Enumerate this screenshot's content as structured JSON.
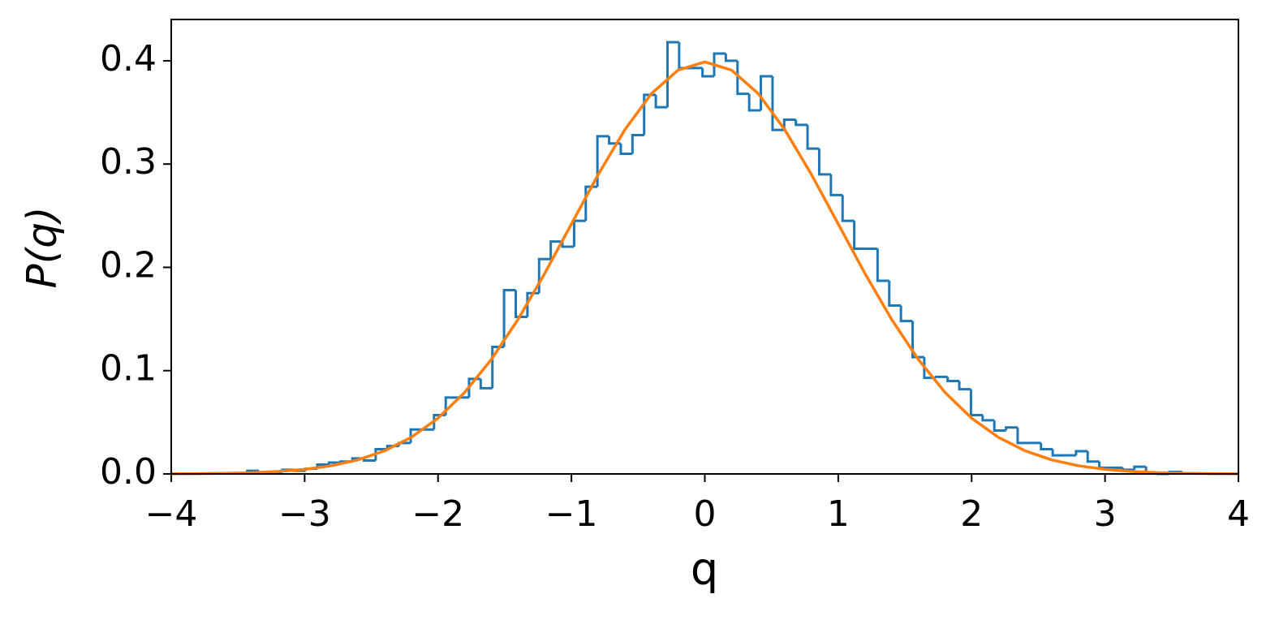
{
  "chart_data": {
    "type": "histogram",
    "xlabel": "q",
    "ylabel": "P(q)",
    "color": "#1f77b4",
    "bins": [
      -3.43,
      -3.3425,
      -3.255,
      -3.1675,
      -3.08,
      -2.9925,
      -2.905,
      -2.8175,
      -2.73,
      -2.6425,
      -2.555,
      -2.4675,
      -2.38,
      -2.2925,
      -2.205,
      -2.1175,
      -2.03,
      -1.9425,
      -1.855,
      -1.7675,
      -1.68,
      -1.5925,
      -1.505,
      -1.4175,
      -1.33,
      -1.2425,
      -1.155,
      -1.0675,
      -0.98,
      -0.8925,
      -0.805,
      -0.7175,
      -0.63,
      -0.5425,
      -0.455,
      -0.3675,
      -0.28,
      -0.1925,
      -0.105,
      -0.0175,
      0.07,
      0.1575,
      0.245,
      0.3325,
      0.42,
      0.5075,
      0.595,
      0.6825,
      0.77,
      0.8575,
      0.945,
      1.0325,
      1.12,
      1.2075,
      1.295,
      1.3825,
      1.47,
      1.5575,
      1.645,
      1.7325,
      1.82,
      1.9075,
      1.995,
      2.0825,
      2.17,
      2.2575,
      2.345,
      2.4325,
      2.52,
      2.6075,
      2.695,
      2.7825,
      2.87,
      2.9575,
      3.045,
      3.1325,
      3.22,
      3.3075,
      3.395,
      3.4825,
      3.57
    ],
    "values": [
      0.003,
      0.001,
      0.002,
      0.004,
      0.003,
      0.005,
      0.009,
      0.011,
      0.012,
      0.015,
      0.013,
      0.024,
      0.027,
      0.03,
      0.043,
      0.043,
      0.057,
      0.074,
      0.074,
      0.092,
      0.083,
      0.123,
      0.178,
      0.152,
      0.175,
      0.208,
      0.225,
      0.22,
      0.245,
      0.278,
      0.327,
      0.32,
      0.31,
      0.328,
      0.367,
      0.355,
      0.418,
      0.393,
      0.393,
      0.385,
      0.407,
      0.4,
      0.368,
      0.352,
      0.385,
      0.333,
      0.343,
      0.338,
      0.315,
      0.29,
      0.27,
      0.245,
      0.218,
      0.218,
      0.187,
      0.163,
      0.148,
      0.113,
      0.093,
      0.094,
      0.09,
      0.082,
      0.057,
      0.052,
      0.042,
      0.045,
      0.03,
      0.03,
      0.024,
      0.018,
      0.018,
      0.022,
      0.012,
      0.006,
      0.006,
      0.004,
      0.007,
      0.001,
      0.0,
      0.002
    ],
    "overlay": {
      "type": "line",
      "color": "#ff7f0e",
      "x": [
        -4,
        -3.8,
        -3.6,
        -3.4,
        -3.2,
        -3,
        -2.8,
        -2.6,
        -2.4,
        -2.2,
        -2,
        -1.8,
        -1.6,
        -1.4,
        -1.2,
        -1,
        -0.8,
        -0.6,
        -0.4,
        -0.2,
        0,
        0.2,
        0.4,
        0.6,
        0.8,
        1,
        1.2,
        1.4,
        1.6,
        1.8,
        2,
        2.2,
        2.4,
        2.6,
        2.8,
        3,
        3.2,
        3.4,
        3.6,
        3.8,
        4
      ],
      "values": [
        0.0001,
        0.0003,
        0.0006,
        0.0012,
        0.0024,
        0.0044,
        0.0079,
        0.0136,
        0.0224,
        0.0355,
        0.054,
        0.079,
        0.1109,
        0.1497,
        0.1942,
        0.242,
        0.2897,
        0.3332,
        0.3683,
        0.391,
        0.3989,
        0.391,
        0.3683,
        0.3332,
        0.2897,
        0.242,
        0.1942,
        0.1497,
        0.1109,
        0.079,
        0.054,
        0.0355,
        0.0224,
        0.0136,
        0.0079,
        0.0044,
        0.0024,
        0.0012,
        0.0006,
        0.0003,
        0.0001
      ]
    },
    "xlim": [
      -4,
      4
    ],
    "xticks": [
      {
        "value": -4,
        "label": "−4"
      },
      {
        "value": -3,
        "label": "−3"
      },
      {
        "value": -2,
        "label": "−2"
      },
      {
        "value": -1,
        "label": "−1"
      },
      0,
      1,
      2,
      3,
      4
    ],
    "ylim": [
      0,
      0.44
    ],
    "yticks": [
      {
        "value": 0,
        "label": "0.0"
      },
      0.1,
      0.2,
      0.3,
      0.4
    ],
    "grid": false
  }
}
